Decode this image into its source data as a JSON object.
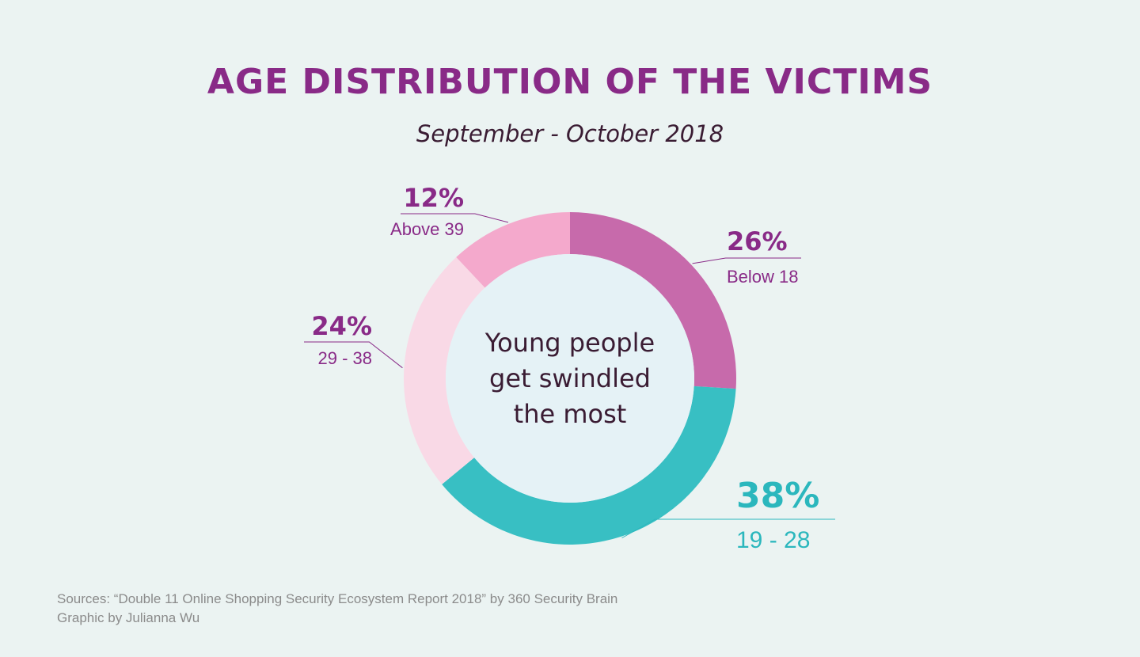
{
  "title": "AGE DISTRIBUTION OF THE VICTIMS",
  "subtitle": "September - October 2018",
  "center_text": [
    "Young people",
    "get swindled",
    "the most"
  ],
  "colors": {
    "background": "#ebf3f2",
    "title": "#892a87",
    "center_circle": "#e5f2f6",
    "center_text": "#3a1c33"
  },
  "chart_data": {
    "type": "pie",
    "title": "AGE DISTRIBUTION OF THE VICTIMS",
    "subtitle": "September - October 2018",
    "unit": "%",
    "categories": [
      "Below 18",
      "19 - 28",
      "29 - 38",
      "Above 39"
    ],
    "values": [
      26,
      38,
      24,
      12
    ],
    "value_labels": [
      "26%",
      "38%",
      "24%",
      "12%"
    ],
    "colors": [
      "#c76aab",
      "#38bfc3",
      "#f9d9e6",
      "#f4a9cc"
    ],
    "label_colors": [
      "#892a87",
      "#2bb7bd",
      "#892a87",
      "#892a87"
    ]
  },
  "footer": {
    "sources": "Sources: “Double 11 Online Shopping Security Ecosystem Report 2018” by 360 Security Brain",
    "credit": "Graphic by Julianna Wu"
  }
}
